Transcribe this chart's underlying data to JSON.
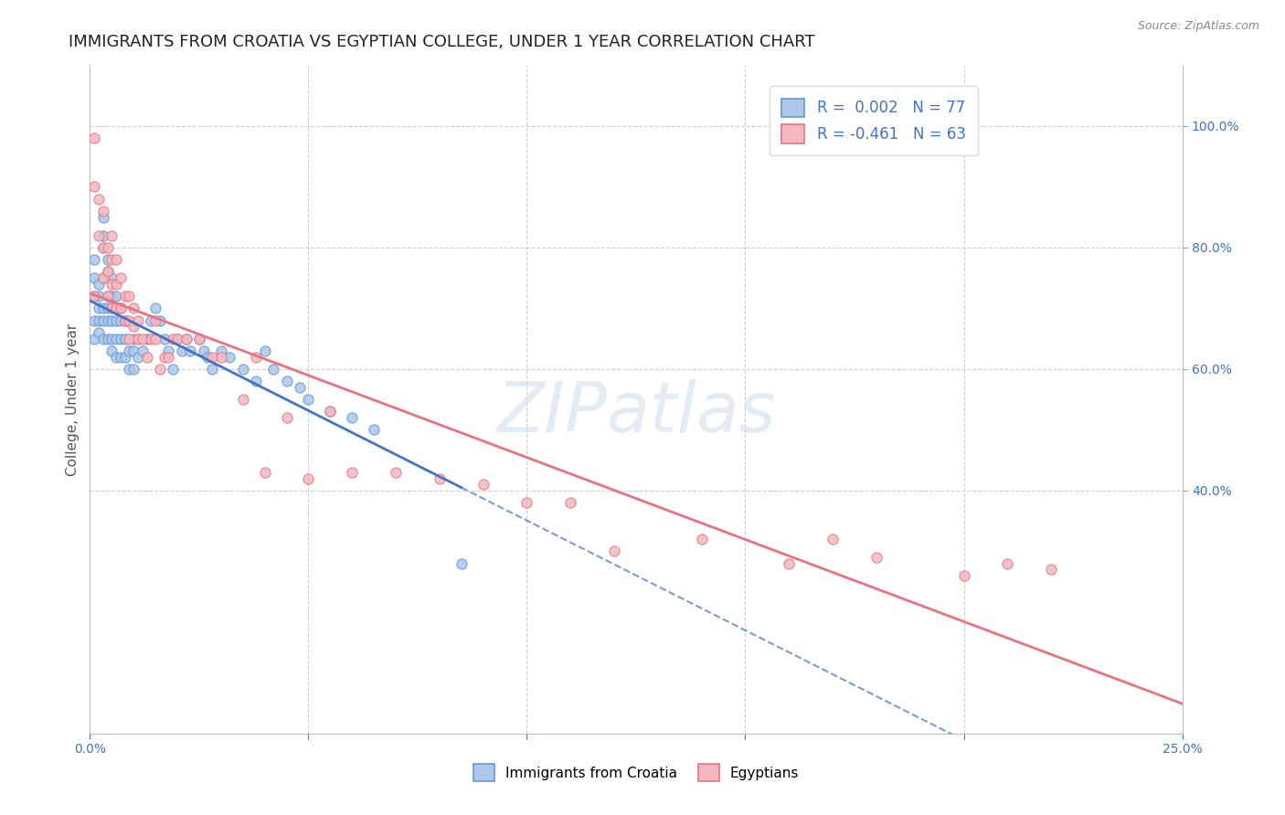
{
  "title": "IMMIGRANTS FROM CROATIA VS EGYPTIAN COLLEGE, UNDER 1 YEAR CORRELATION CHART",
  "source": "Source: ZipAtlas.com",
  "ylabel": "College, Under 1 year",
  "xlim": [
    0.0,
    0.25
  ],
  "ylim": [
    0.0,
    1.1
  ],
  "x_tick_positions": [
    0.0,
    0.05,
    0.1,
    0.15,
    0.2,
    0.25
  ],
  "x_tick_labels": [
    "0.0%",
    "",
    "",
    "",
    "",
    "25.0%"
  ],
  "y_tick_pos": [
    0.4,
    0.6,
    0.8,
    1.0
  ],
  "y_tick_labels": [
    "40.0%",
    "60.0%",
    "80.0%",
    "100.0%"
  ],
  "series_croatia": {
    "color_face": "#aec6e8",
    "color_edge": "#5b9bd5",
    "line_color": "#4472c4",
    "R": 0.002,
    "N": 77,
    "x": [
      0.001,
      0.001,
      0.001,
      0.001,
      0.001,
      0.002,
      0.002,
      0.002,
      0.002,
      0.002,
      0.003,
      0.003,
      0.003,
      0.003,
      0.003,
      0.003,
      0.003,
      0.004,
      0.004,
      0.004,
      0.004,
      0.004,
      0.004,
      0.005,
      0.005,
      0.005,
      0.005,
      0.005,
      0.005,
      0.006,
      0.006,
      0.006,
      0.006,
      0.006,
      0.007,
      0.007,
      0.007,
      0.007,
      0.008,
      0.008,
      0.008,
      0.009,
      0.009,
      0.01,
      0.01,
      0.01,
      0.011,
      0.011,
      0.012,
      0.013,
      0.014,
      0.015,
      0.016,
      0.017,
      0.018,
      0.019,
      0.02,
      0.021,
      0.022,
      0.023,
      0.025,
      0.026,
      0.027,
      0.028,
      0.03,
      0.032,
      0.035,
      0.038,
      0.04,
      0.042,
      0.045,
      0.048,
      0.05,
      0.055,
      0.06,
      0.065,
      0.085
    ],
    "y": [
      0.72,
      0.78,
      0.75,
      0.68,
      0.65,
      0.74,
      0.7,
      0.72,
      0.68,
      0.66,
      0.82,
      0.85,
      0.8,
      0.75,
      0.7,
      0.68,
      0.65,
      0.78,
      0.76,
      0.72,
      0.7,
      0.68,
      0.65,
      0.75,
      0.72,
      0.7,
      0.68,
      0.65,
      0.63,
      0.72,
      0.7,
      0.68,
      0.65,
      0.62,
      0.7,
      0.68,
      0.65,
      0.62,
      0.68,
      0.65,
      0.62,
      0.63,
      0.6,
      0.65,
      0.63,
      0.6,
      0.65,
      0.62,
      0.63,
      0.65,
      0.68,
      0.7,
      0.68,
      0.65,
      0.63,
      0.6,
      0.65,
      0.63,
      0.65,
      0.63,
      0.65,
      0.63,
      0.62,
      0.6,
      0.63,
      0.62,
      0.6,
      0.58,
      0.63,
      0.6,
      0.58,
      0.57,
      0.55,
      0.53,
      0.52,
      0.5,
      0.28
    ]
  },
  "series_egypt": {
    "color_face": "#f4b8c1",
    "color_edge": "#e8737f",
    "line_color": "#e8737f",
    "R": -0.461,
    "N": 63,
    "x": [
      0.001,
      0.001,
      0.001,
      0.002,
      0.002,
      0.003,
      0.003,
      0.003,
      0.004,
      0.004,
      0.004,
      0.005,
      0.005,
      0.005,
      0.005,
      0.006,
      0.006,
      0.006,
      0.007,
      0.007,
      0.008,
      0.008,
      0.009,
      0.009,
      0.009,
      0.01,
      0.01,
      0.011,
      0.011,
      0.012,
      0.013,
      0.014,
      0.015,
      0.015,
      0.016,
      0.017,
      0.018,
      0.019,
      0.02,
      0.022,
      0.025,
      0.028,
      0.03,
      0.035,
      0.038,
      0.04,
      0.045,
      0.05,
      0.055,
      0.06,
      0.07,
      0.08,
      0.09,
      0.1,
      0.11,
      0.12,
      0.14,
      0.16,
      0.17,
      0.18,
      0.2,
      0.21,
      0.22
    ],
    "y": [
      0.98,
      0.9,
      0.72,
      0.88,
      0.82,
      0.86,
      0.8,
      0.75,
      0.8,
      0.76,
      0.72,
      0.82,
      0.78,
      0.74,
      0.7,
      0.78,
      0.74,
      0.7,
      0.75,
      0.7,
      0.72,
      0.68,
      0.72,
      0.68,
      0.65,
      0.7,
      0.67,
      0.68,
      0.65,
      0.65,
      0.62,
      0.65,
      0.68,
      0.65,
      0.6,
      0.62,
      0.62,
      0.65,
      0.65,
      0.65,
      0.65,
      0.62,
      0.62,
      0.55,
      0.62,
      0.43,
      0.52,
      0.42,
      0.53,
      0.43,
      0.43,
      0.42,
      0.41,
      0.38,
      0.38,
      0.3,
      0.32,
      0.28,
      0.32,
      0.29,
      0.26,
      0.28,
      0.27
    ]
  },
  "watermark": "ZIPatlas",
  "background_color": "#ffffff",
  "grid_color": "#d0d0d0",
  "croatia_line_solid_end": 0.085,
  "egypt_line_solid_end": 0.25,
  "title_fontsize": 13,
  "axis_label_fontsize": 11,
  "tick_fontsize": 10,
  "legend_fontsize": 12
}
